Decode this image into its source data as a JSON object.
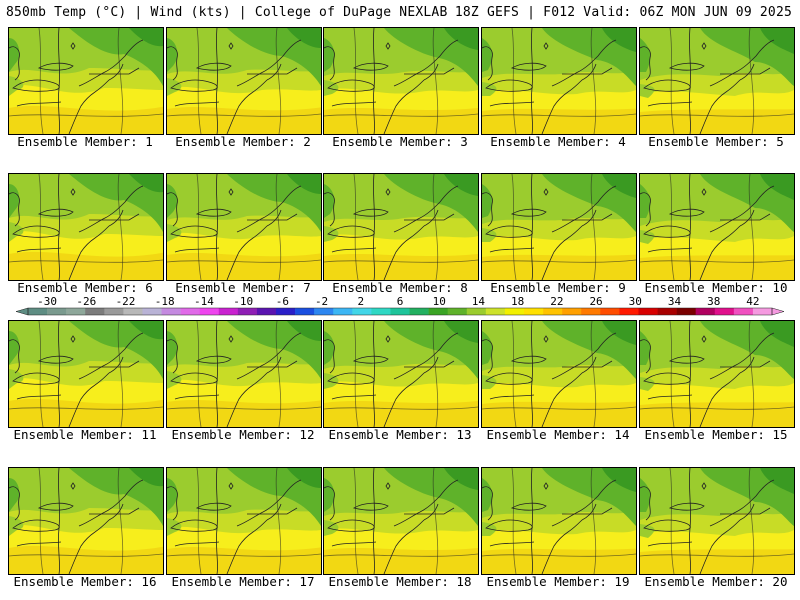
{
  "header": {
    "left": "850mb Temp (°C) | Wind (kts) | College of DuPage NEXLAB",
    "right": "18Z GEFS | F012 Valid: 06Z MON JUN 09 2025"
  },
  "members": [
    "Ensemble Member: 1",
    "Ensemble Member: 2",
    "Ensemble Member: 3",
    "Ensemble Member: 4",
    "Ensemble Member: 5",
    "Ensemble Member: 6",
    "Ensemble Member: 7",
    "Ensemble Member: 8",
    "Ensemble Member: 9",
    "Ensemble Member: 10",
    "Ensemble Member: 11",
    "Ensemble Member: 12",
    "Ensemble Member: 13",
    "Ensemble Member: 14",
    "Ensemble Member: 15",
    "Ensemble Member: 16",
    "Ensemble Member: 17",
    "Ensemble Member: 18",
    "Ensemble Member: 19",
    "Ensemble Member: 20"
  ],
  "colorbar": {
    "ticks": [
      "-30",
      "-26",
      "-22",
      "-18",
      "-14",
      "-10",
      "-6",
      "-2",
      "2",
      "6",
      "10",
      "14",
      "18",
      "22",
      "26",
      "30",
      "34",
      "38",
      "42"
    ],
    "colors": [
      "#5e8d83",
      "#7a9a8e",
      "#8ea79a",
      "#7c7c7c",
      "#9a9a9a",
      "#b8b8b8",
      "#b9b3d6",
      "#c48ae0",
      "#e06ae8",
      "#ee44ee",
      "#c922d0",
      "#8f1fb5",
      "#5a14b0",
      "#2a1fc8",
      "#1a4fe0",
      "#2d86f0",
      "#3cb6f4",
      "#42d6e8",
      "#2fd8c4",
      "#1ec49a",
      "#22b060",
      "#3aa424",
      "#5fb22a",
      "#9bcc2e",
      "#cde22a",
      "#f2f000",
      "#ffe000",
      "#ffc300",
      "#ffa000",
      "#ff7a00",
      "#ff4d00",
      "#ff1a00",
      "#d80000",
      "#a80000",
      "#7a0000",
      "#b00060",
      "#e0108c",
      "#f050c0",
      "#f59ae0"
    ]
  },
  "map_colors": {
    "yellow": "#f7ee1c",
    "orange_yellow": "#f2d813",
    "yellow_green": "#c8dc26",
    "light_green": "#9bcc2e",
    "green": "#5fb22a",
    "dark_green": "#3a9a22"
  }
}
